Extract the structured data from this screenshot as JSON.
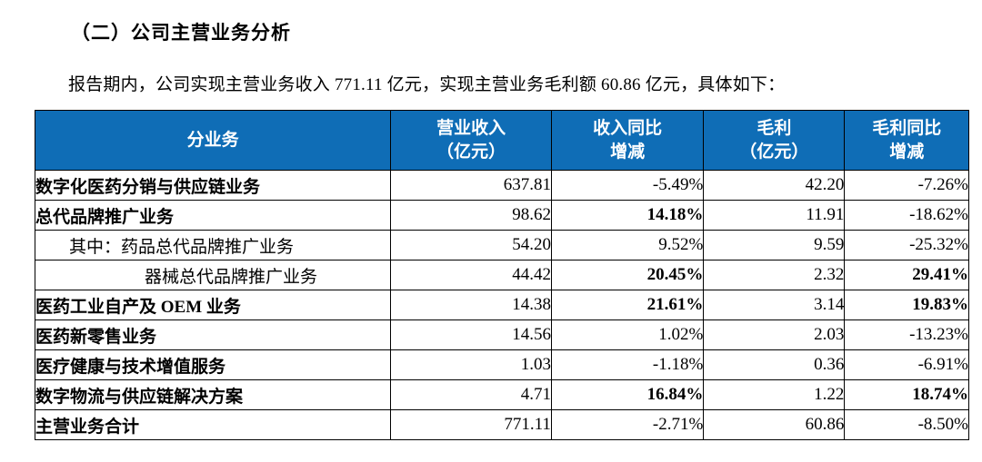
{
  "heading": "（二）公司主营业务分析",
  "intro": "报告期内，公司实现主营业务收入 771.11 亿元，实现主营业务毛利额 60.86 亿元，具体如下：",
  "table": {
    "header_bg": "#0f6db6",
    "columns": [
      {
        "id": "business",
        "lines": [
          "分业务"
        ]
      },
      {
        "id": "revenue",
        "lines": [
          "营业收入",
          "（亿元）"
        ]
      },
      {
        "id": "revenue-yoy",
        "lines": [
          "收入同比",
          "增减"
        ]
      },
      {
        "id": "profit",
        "lines": [
          "毛利",
          "（亿元）"
        ]
      },
      {
        "id": "profit-yoy",
        "lines": [
          "毛利同比",
          "增减"
        ]
      }
    ],
    "rows": [
      {
        "label": "数字化医药分销与供应链业务",
        "bold": true,
        "indent": 0,
        "values": [
          {
            "text": "637.81",
            "bold": false
          },
          {
            "text": "-5.49%",
            "bold": false
          },
          {
            "text": "42.20",
            "bold": false
          },
          {
            "text": "-7.26%",
            "bold": false
          }
        ]
      },
      {
        "label": "总代品牌推广业务",
        "bold": true,
        "indent": 0,
        "values": [
          {
            "text": "98.62",
            "bold": false
          },
          {
            "text": "14.18%",
            "bold": true
          },
          {
            "text": "11.91",
            "bold": false
          },
          {
            "text": "-18.62%",
            "bold": false
          }
        ]
      },
      {
        "label": "其中：药品总代品牌推广业务",
        "bold": false,
        "indent": 1,
        "values": [
          {
            "text": "54.20",
            "bold": false
          },
          {
            "text": "9.52%",
            "bold": false
          },
          {
            "text": "9.59",
            "bold": false
          },
          {
            "text": "-25.32%",
            "bold": false
          }
        ]
      },
      {
        "label": "器械总代品牌推广业务",
        "bold": false,
        "indent": 2,
        "values": [
          {
            "text": "44.42",
            "bold": false
          },
          {
            "text": "20.45%",
            "bold": true
          },
          {
            "text": "2.32",
            "bold": false
          },
          {
            "text": "29.41%",
            "bold": true
          }
        ]
      },
      {
        "label": "医药工业自产及 OEM 业务",
        "bold": true,
        "indent": 0,
        "values": [
          {
            "text": "14.38",
            "bold": false
          },
          {
            "text": "21.61%",
            "bold": true
          },
          {
            "text": "3.14",
            "bold": false
          },
          {
            "text": "19.83%",
            "bold": true
          }
        ]
      },
      {
        "label": "医药新零售业务",
        "bold": true,
        "indent": 0,
        "values": [
          {
            "text": "14.56",
            "bold": false
          },
          {
            "text": "1.02%",
            "bold": false
          },
          {
            "text": "2.03",
            "bold": false
          },
          {
            "text": "-13.23%",
            "bold": false
          }
        ]
      },
      {
        "label": "医疗健康与技术增值服务",
        "bold": true,
        "indent": 0,
        "values": [
          {
            "text": "1.03",
            "bold": false
          },
          {
            "text": "-1.18%",
            "bold": false
          },
          {
            "text": "0.36",
            "bold": false
          },
          {
            "text": "-6.91%",
            "bold": false
          }
        ]
      },
      {
        "label": "数字物流与供应链解决方案",
        "bold": true,
        "indent": 0,
        "values": [
          {
            "text": "4.71",
            "bold": false
          },
          {
            "text": "16.84%",
            "bold": true
          },
          {
            "text": "1.22",
            "bold": false
          },
          {
            "text": "18.74%",
            "bold": true
          }
        ]
      },
      {
        "label": "主营业务合计",
        "bold": true,
        "indent": 0,
        "values": [
          {
            "text": "771.11",
            "bold": false
          },
          {
            "text": "-2.71%",
            "bold": false
          },
          {
            "text": "60.86",
            "bold": false
          },
          {
            "text": "-8.50%",
            "bold": false
          }
        ]
      }
    ]
  }
}
